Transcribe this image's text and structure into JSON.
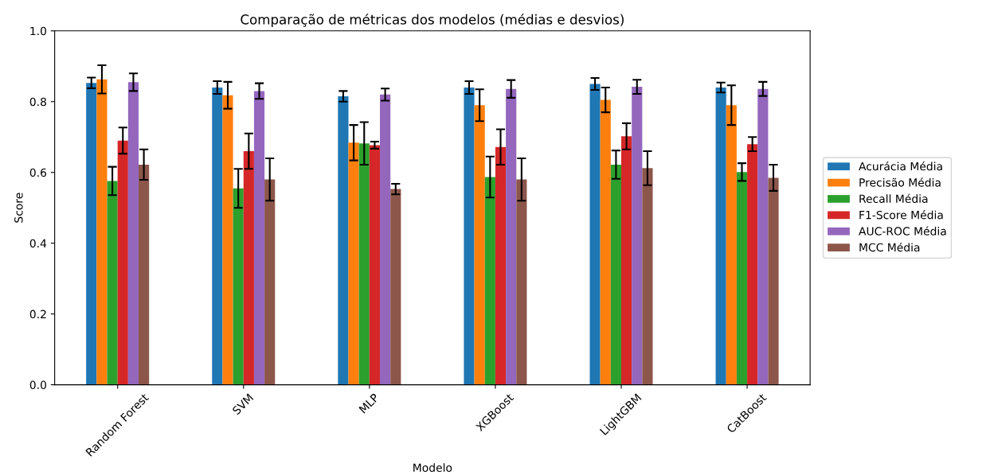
{
  "chart_data": {
    "type": "bar",
    "title": "Comparação de métricas dos modelos (médias e desvios)",
    "xlabel": "Modelo",
    "ylabel": "Score",
    "categories": [
      "Random Forest",
      "SVM",
      "MLP",
      "XGBoost",
      "LightGBM",
      "CatBoost"
    ],
    "series": [
      {
        "name": "Acurácia Média",
        "color": "#1f77b4",
        "values": [
          0.853,
          0.84,
          0.815,
          0.84,
          0.85,
          0.84
        ],
        "errors": [
          0.015,
          0.018,
          0.015,
          0.018,
          0.017,
          0.014
        ]
      },
      {
        "name": "Precisão Média",
        "color": "#ff7f0e",
        "values": [
          0.863,
          0.818,
          0.684,
          0.79,
          0.805,
          0.79
        ],
        "errors": [
          0.04,
          0.038,
          0.05,
          0.045,
          0.035,
          0.056
        ]
      },
      {
        "name": "Recall Média",
        "color": "#2ca02c",
        "values": [
          0.576,
          0.555,
          0.682,
          0.587,
          0.622,
          0.601
        ],
        "errors": [
          0.04,
          0.055,
          0.06,
          0.058,
          0.04,
          0.025
        ]
      },
      {
        "name": "F1-Score Média",
        "color": "#d62728",
        "values": [
          0.69,
          0.66,
          0.677,
          0.672,
          0.702,
          0.68
        ],
        "errors": [
          0.037,
          0.05,
          0.01,
          0.05,
          0.037,
          0.02
        ]
      },
      {
        "name": "AUC-ROC Média",
        "color": "#9467bd",
        "values": [
          0.855,
          0.83,
          0.82,
          0.836,
          0.842,
          0.836
        ],
        "errors": [
          0.025,
          0.022,
          0.017,
          0.025,
          0.02,
          0.02
        ]
      },
      {
        "name": "MCC Média",
        "color": "#8c564b",
        "values": [
          0.622,
          0.58,
          0.553,
          0.58,
          0.612,
          0.585
        ],
        "errors": [
          0.043,
          0.06,
          0.015,
          0.06,
          0.048,
          0.037
        ]
      }
    ],
    "ylim": [
      0,
      1
    ],
    "yticks": [
      {
        "value": 0,
        "label": "0.0"
      },
      {
        "value": 0.2,
        "label": "0.2"
      },
      {
        "value": 0.4,
        "label": "0.4"
      },
      {
        "value": 0.6,
        "label": "0.6"
      },
      {
        "value": 0.8,
        "label": "0.8"
      },
      {
        "value": 1,
        "label": "1.0"
      }
    ],
    "legend": "right"
  }
}
